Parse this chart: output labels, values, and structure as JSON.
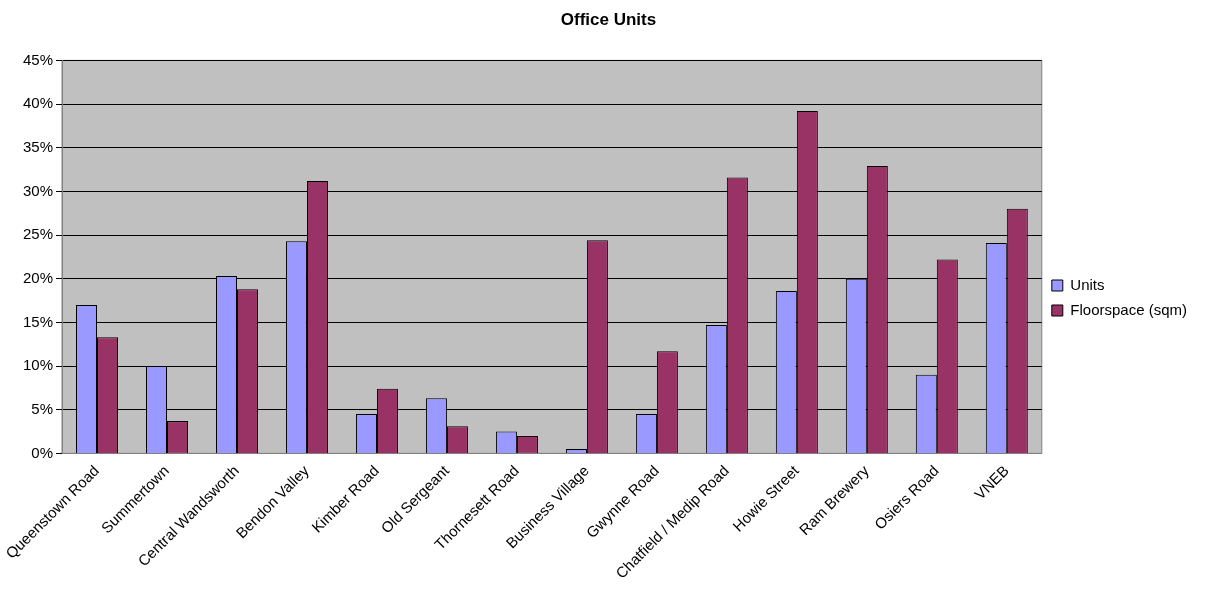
{
  "chart_data": {
    "type": "bar",
    "title": "Office Units",
    "categories": [
      "Queenstown Road",
      "Summertown",
      "Central Wandsworth",
      "Bendon Valley",
      "Kimber Road",
      "Old Sergeant",
      "Thornesett Road",
      "Business Village",
      "Gwynne Road",
      "Chatfield / Medip Road",
      "Howie Street",
      "Ram Brewery",
      "Osiers Road",
      "VNEB"
    ],
    "series": [
      {
        "name": "Units",
        "color": "#9999ff",
        "values": [
          17.0,
          10.0,
          20.3,
          24.3,
          4.5,
          6.3,
          2.5,
          0.5,
          4.5,
          14.7,
          18.6,
          20.0,
          9.0,
          24.1
        ]
      },
      {
        "name": "Floorspace (sqm)",
        "color": "#993366",
        "values": [
          13.3,
          3.7,
          18.8,
          31.2,
          7.4,
          3.1,
          2.0,
          24.4,
          11.7,
          31.6,
          39.2,
          32.9,
          22.2,
          28.0
        ]
      }
    ],
    "ylim": [
      0,
      45
    ],
    "yticks": [
      {
        "value": 0,
        "label": "0%"
      },
      {
        "value": 5,
        "label": "5%"
      },
      {
        "value": 10,
        "label": "10%"
      },
      {
        "value": 15,
        "label": "15%"
      },
      {
        "value": 20,
        "label": "20%"
      },
      {
        "value": 25,
        "label": "25%"
      },
      {
        "value": 30,
        "label": "30%"
      },
      {
        "value": 35,
        "label": "35%"
      },
      {
        "value": 40,
        "label": "40%"
      },
      {
        "value": 45,
        "label": "45%"
      }
    ],
    "grid": "y",
    "legend": "right"
  }
}
